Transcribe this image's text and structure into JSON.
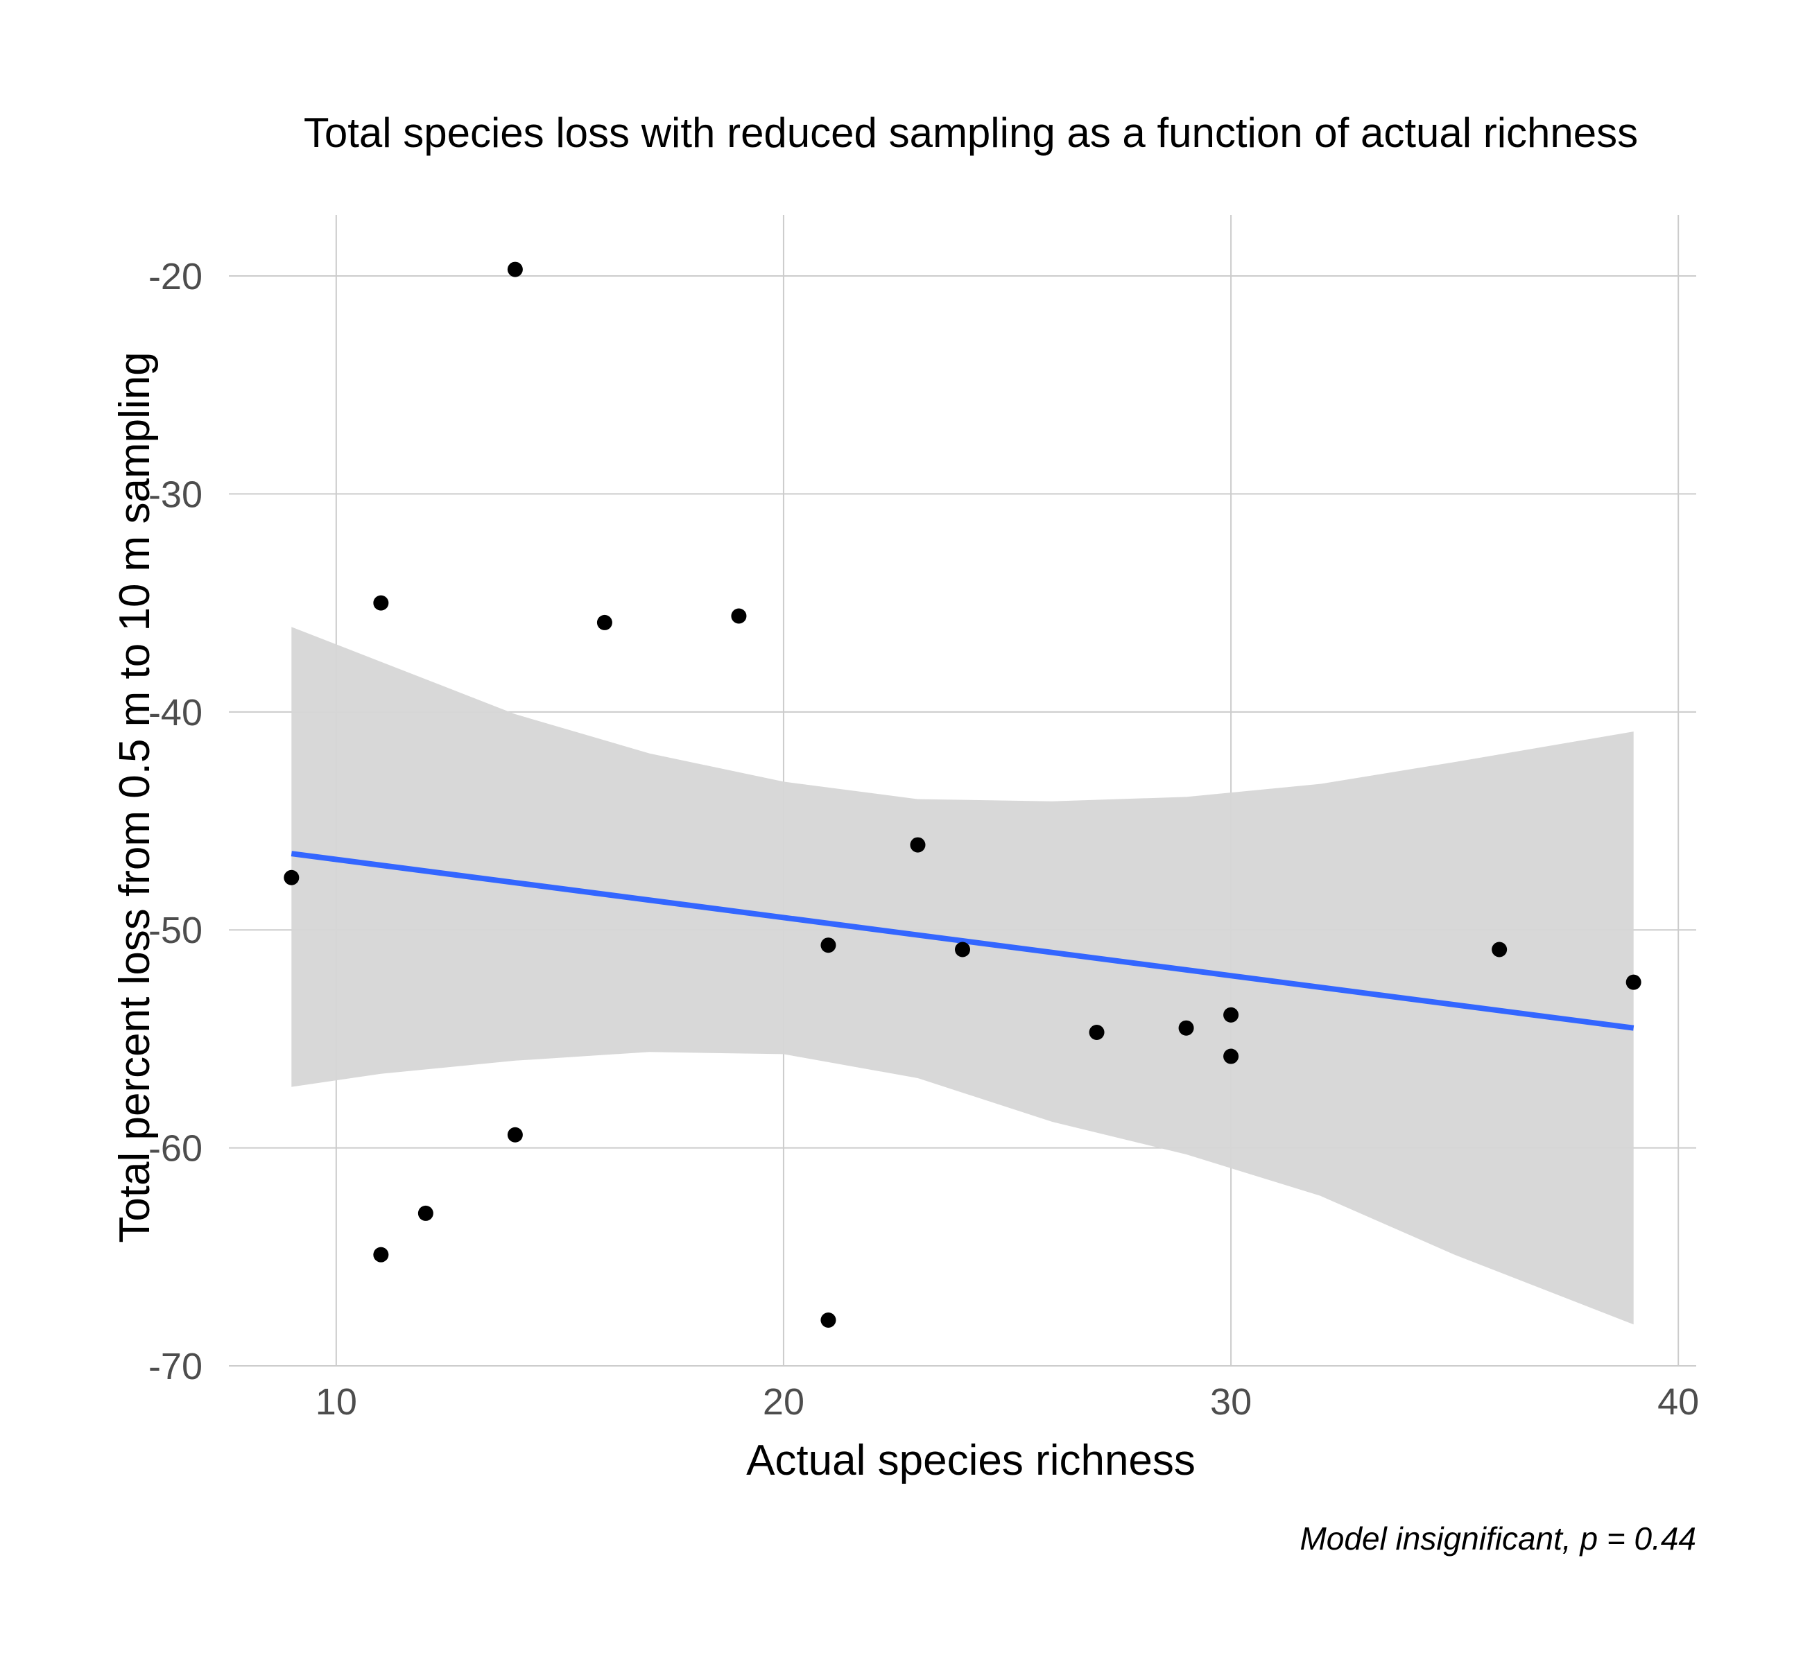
{
  "chart_data": {
    "type": "scatter",
    "title": "Total species loss with reduced sampling as a function of actual richness",
    "xlabel": "Actual species richness",
    "ylabel": "Total percent loss from 0.5 m to 10 m sampling",
    "caption": "Model insignificant, p =  0.44",
    "xlim": [
      7.6,
      40.4
    ],
    "ylim": [
      -70,
      -17.2
    ],
    "x_ticks": [
      10,
      20,
      30,
      40
    ],
    "x_tick_labels": [
      "10",
      "20",
      "30",
      "40"
    ],
    "y_ticks": [
      -20,
      -30,
      -40,
      -50,
      -60,
      -70
    ],
    "y_tick_labels": [
      "-20",
      "-30",
      "-40",
      "-50",
      "-60",
      "-70"
    ],
    "grid": true,
    "colors": {
      "points": "#000000",
      "fit_line": "#3366ff",
      "ribbon": "#d6d6d6",
      "grid": "#cccccc"
    },
    "points": [
      {
        "x": 9,
        "y": -47.6
      },
      {
        "x": 11,
        "y": -35.0
      },
      {
        "x": 11,
        "y": -64.9
      },
      {
        "x": 12,
        "y": -63.0
      },
      {
        "x": 14,
        "y": -19.7
      },
      {
        "x": 14,
        "y": -59.4
      },
      {
        "x": 16,
        "y": -35.9
      },
      {
        "x": 19,
        "y": -35.6
      },
      {
        "x": 21,
        "y": -50.7
      },
      {
        "x": 21,
        "y": -67.9
      },
      {
        "x": 23,
        "y": -46.1
      },
      {
        "x": 24,
        "y": -50.9
      },
      {
        "x": 27,
        "y": -54.7
      },
      {
        "x": 29,
        "y": -54.5
      },
      {
        "x": 30,
        "y": -53.9
      },
      {
        "x": 30,
        "y": -55.8
      },
      {
        "x": 36,
        "y": -50.9
      },
      {
        "x": 39,
        "y": -52.4
      }
    ],
    "fit": {
      "x": [
        9,
        39
      ],
      "y": [
        -46.5,
        -54.5
      ]
    },
    "ribbon": {
      "x": [
        9,
        11,
        14,
        17,
        20,
        23,
        26,
        29,
        32,
        35,
        39
      ],
      "upper": [
        -36.1,
        -37.7,
        -40.1,
        -41.9,
        -43.2,
        -44.0,
        -44.1,
        -43.9,
        -43.3,
        -42.3,
        -40.9
      ],
      "lower": [
        -57.2,
        -56.6,
        -56.0,
        -55.6,
        -55.7,
        -56.8,
        -58.8,
        -60.3,
        -62.2,
        -64.9,
        -68.1
      ]
    }
  }
}
